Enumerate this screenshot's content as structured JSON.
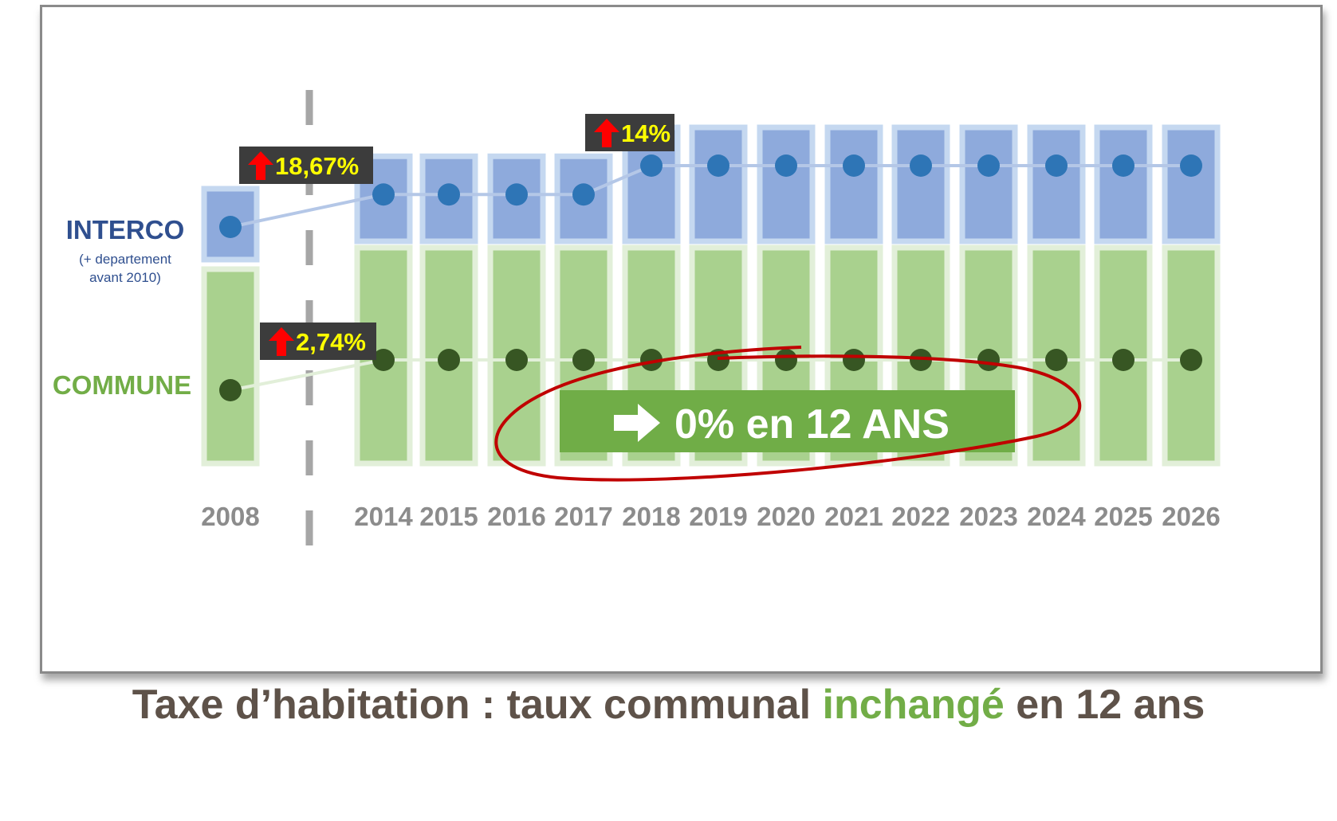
{
  "chart_data": {
    "type": "bar",
    "title": "",
    "categories": [
      "2008",
      "2014",
      "2015",
      "2016",
      "2017",
      "2018",
      "2019",
      "2020",
      "2021",
      "2022",
      "2023",
      "2024",
      "2025",
      "2026"
    ],
    "series": [
      {
        "name": "INTERCO",
        "note": "(+ departement avant 2010)",
        "color": "#2e75b6",
        "bar_color": "#8eaadc",
        "values": [
          1.0,
          1.1867,
          1.1867,
          1.1867,
          1.1867,
          1.3528,
          1.3528,
          1.3528,
          1.3528,
          1.3528,
          1.3528,
          1.3528,
          1.3528,
          1.3528
        ]
      },
      {
        "name": "COMMUNE",
        "color": "#375623",
        "bar_color": "#a9d18e",
        "values": [
          1.0,
          1.0274,
          1.0274,
          1.0274,
          1.0274,
          1.0274,
          1.0274,
          1.0274,
          1.0274,
          1.0274,
          1.0274,
          1.0274,
          1.0274,
          1.0274
        ]
      }
    ],
    "annotations": [
      {
        "text": "18,67%",
        "series": "INTERCO",
        "between": [
          "2008",
          "2014"
        ],
        "icon": "up-arrow-icon"
      },
      {
        "text": "14%",
        "series": "INTERCO",
        "between": [
          "2017",
          "2018"
        ],
        "icon": "up-arrow-icon"
      },
      {
        "text": "2,74%",
        "series": "COMMUNE",
        "between": [
          "2008",
          "2014"
        ],
        "icon": "up-arrow-icon"
      }
    ],
    "callout": {
      "text": "0% en 12 ANS",
      "icon": "right-arrow-icon"
    },
    "legend": "left",
    "grid": false
  },
  "caption": {
    "before": "Taxe d’habitation : taux communal ",
    "highlight": "inchangé",
    "after": " en 12 ans"
  },
  "colors": {
    "interco_label": "#2f4f8f",
    "commune_label": "#72ad47",
    "year_label": "#8c8c8c",
    "badge_bg": "#3c3c3c",
    "badge_text": "#ffff00",
    "badge_arrow": "#ff0000",
    "callout_bg": "#70ad47",
    "ellipse": "#c00000",
    "divider": "#a6a6a6"
  }
}
